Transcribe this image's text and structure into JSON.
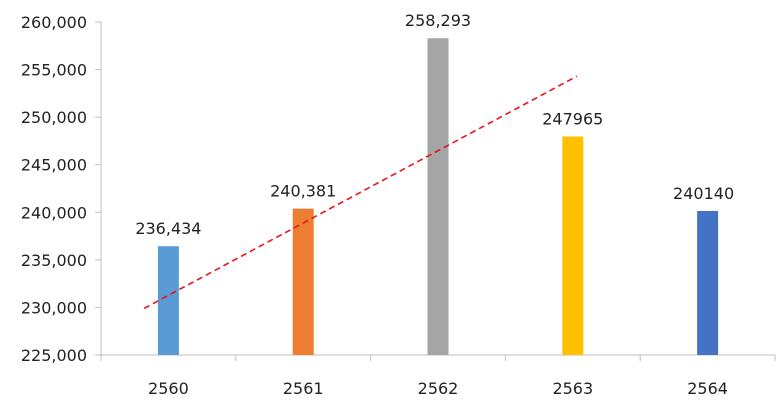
{
  "chart_data": {
    "type": "bar",
    "categories": [
      "2560",
      "2561",
      "2562",
      "2563",
      "2564"
    ],
    "values": [
      236434,
      240381,
      258293,
      247965,
      240140
    ],
    "data_labels": [
      "236,434",
      "240,381",
      "258,293",
      "247965",
      "240140"
    ],
    "bar_colors": [
      "#5b9bd5",
      "#ed7d31",
      "#a5a5a5",
      "#ffc000",
      "#4472c4"
    ],
    "ylim": [
      225000,
      260000
    ],
    "y_ticks": [
      225000,
      230000,
      235000,
      240000,
      245000,
      250000,
      255000,
      260000
    ],
    "y_tick_labels": [
      "225,000",
      "230,000",
      "235,000",
      "240,000",
      "245,000",
      "250,000",
      "255,000",
      "260,000"
    ],
    "grid": false,
    "title": "",
    "xlabel": "",
    "ylabel": "",
    "trendline": {
      "style": "dashed",
      "color": "#e8141b",
      "start": {
        "x": -0.18,
        "y": 229900
      },
      "end": {
        "x": 3.03,
        "y": 254300
      }
    }
  }
}
